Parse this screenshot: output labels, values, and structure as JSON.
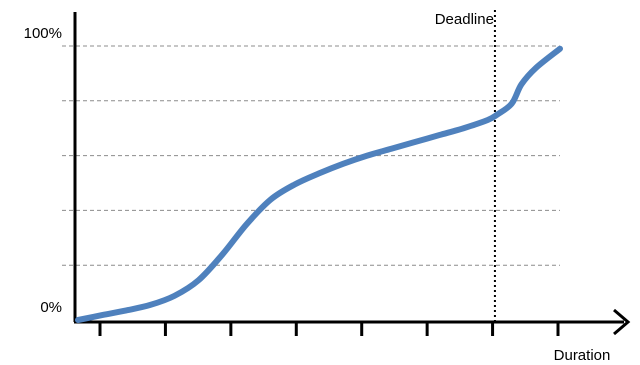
{
  "chart_data": {
    "type": "line",
    "title": "",
    "xlabel": "Duration",
    "ylabel": "",
    "x_range": [
      0,
      1
    ],
    "ylim": [
      0,
      100
    ],
    "y_tick_labels": [
      {
        "value": 0,
        "label": "0%"
      },
      {
        "value": 100,
        "label": "100%"
      }
    ],
    "gridlines_y": [
      20,
      40,
      60,
      80,
      100
    ],
    "grid": "horizontal dashed",
    "x_tick_count": 8,
    "series": [
      {
        "color": "#4f81bd",
        "points": [
          [
            0.0,
            0.0
          ],
          [
            0.05,
            1.8
          ],
          [
            0.1,
            3.5
          ],
          [
            0.15,
            5.5
          ],
          [
            0.2,
            8.8
          ],
          [
            0.25,
            14.5
          ],
          [
            0.3,
            24.0
          ],
          [
            0.35,
            35.0
          ],
          [
            0.4,
            44.0
          ],
          [
            0.45,
            49.5
          ],
          [
            0.5,
            53.5
          ],
          [
            0.55,
            57.0
          ],
          [
            0.6,
            60.0
          ],
          [
            0.65,
            62.5
          ],
          [
            0.7,
            65.0
          ],
          [
            0.75,
            67.5
          ],
          [
            0.8,
            70.0
          ],
          [
            0.85,
            73.0
          ],
          [
            0.87,
            75.0
          ],
          [
            0.9,
            79.0
          ],
          [
            0.92,
            86.0
          ],
          [
            0.95,
            92.0
          ],
          [
            1.0,
            99.0
          ]
        ]
      }
    ],
    "annotations": [
      {
        "label": "Deadline",
        "x": 0.865,
        "style": "dotted vertical line"
      }
    ]
  }
}
